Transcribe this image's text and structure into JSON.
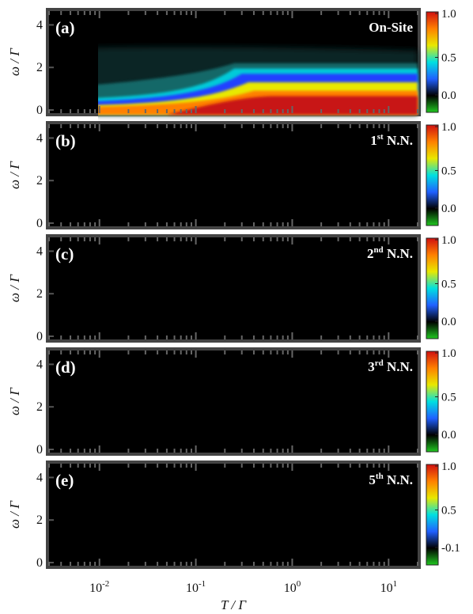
{
  "chart_data": {
    "type": "heatmap",
    "xlabel": "T / Γ",
    "ylabel": "ω / Γ",
    "x_scale": "log",
    "xlim": [
      0.003,
      20
    ],
    "ylim": [
      0,
      4.5
    ],
    "x_ticks": [
      0.01,
      0.1,
      1,
      10
    ],
    "x_tick_labels": [
      {
        "base": "10",
        "exp": "-2"
      },
      {
        "base": "10",
        "exp": "-1"
      },
      {
        "base": "10",
        "exp": "0"
      },
      {
        "base": "10",
        "exp": "1"
      }
    ],
    "y_ticks": [
      0,
      2,
      4
    ],
    "y_tick_labels": [
      "0",
      "2",
      "4"
    ],
    "colorbar": {
      "ticks": [
        1.0,
        0.5,
        0.0
      ],
      "tick_labels": [
        "1.0",
        "0.5",
        "0.0"
      ],
      "last_panel_bottom_label": "-0.1",
      "colors": [
        "#20c820",
        "#000000",
        "#2060ff",
        "#00e0e0",
        "#e8e800",
        "#ff8000",
        "#d01010"
      ]
    },
    "panels": [
      {
        "id": "a",
        "label": "(a)",
        "title": "On-Site",
        "title_sup": "",
        "title_suffix": ""
      },
      {
        "id": "b",
        "label": "(b)",
        "title": "1",
        "title_sup": "st",
        "title_suffix": " N.N."
      },
      {
        "id": "c",
        "label": "(c)",
        "title": "2",
        "title_sup": "nd",
        "title_suffix": " N.N."
      },
      {
        "id": "d",
        "label": "(d)",
        "title": "3",
        "title_sup": "rd",
        "title_suffix": " N.N."
      },
      {
        "id": "e",
        "label": "(e)",
        "title": "5",
        "title_sup": "th",
        "title_suffix": " N.N."
      }
    ]
  }
}
